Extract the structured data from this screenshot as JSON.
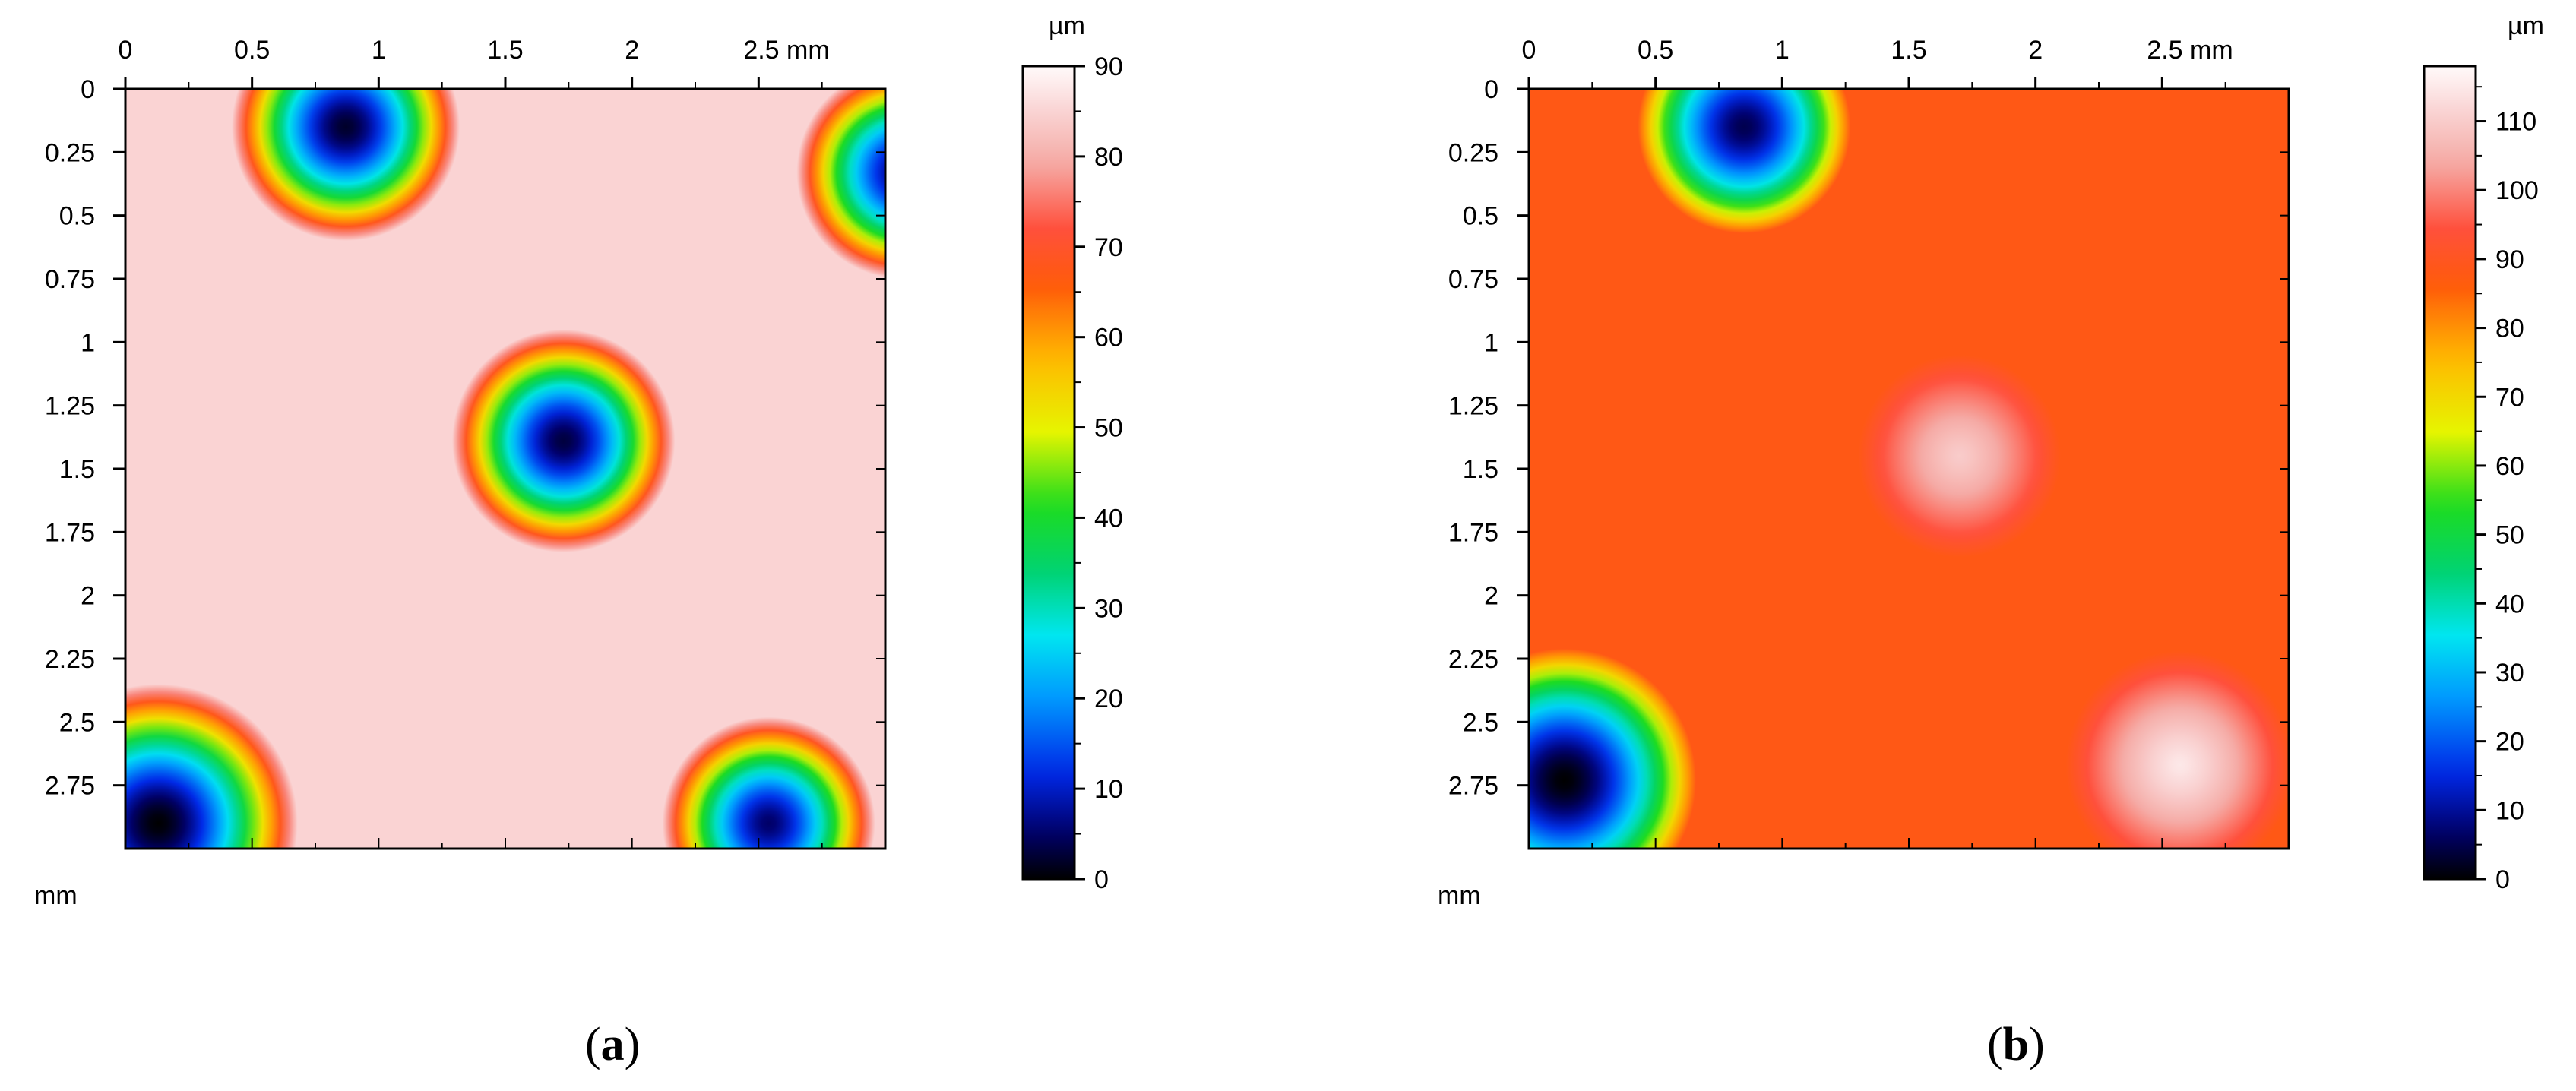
{
  "chart_data": [
    {
      "type": "heatmap",
      "panel_label": "a",
      "x_ticks": [
        "0",
        "0.5",
        "1",
        "1.5",
        "2",
        "2.5 mm"
      ],
      "x_tick_values": [
        0,
        0.5,
        1,
        1.5,
        2,
        2.5
      ],
      "y_ticks": [
        "0",
        "0.25",
        "0.5",
        "0.75",
        "1",
        "1.25",
        "1.5",
        "1.75",
        "2",
        "2.25",
        "2.5",
        "2.75"
      ],
      "y_tick_values": [
        0,
        0.25,
        0.5,
        0.75,
        1,
        1.25,
        1.5,
        1.75,
        2,
        2.25,
        2.5,
        2.75
      ],
      "x_range": [
        0,
        3
      ],
      "y_range": [
        0,
        3
      ],
      "axis_unit_label": "mm",
      "colorbar": {
        "unit": "µm",
        "ticks": [
          "0",
          "10",
          "20",
          "30",
          "40",
          "50",
          "60",
          "70",
          "80",
          "90"
        ],
        "tick_values": [
          0,
          10,
          20,
          30,
          40,
          50,
          60,
          70,
          80,
          90
        ],
        "range": [
          0,
          90
        ]
      },
      "background_value": 85,
      "features": [
        {
          "kind": "pit",
          "x": 0.87,
          "y": 0.15,
          "r": 0.45,
          "min": 2
        },
        {
          "kind": "pit",
          "x": 1.73,
          "y": 1.39,
          "r": 0.44,
          "min": 3
        },
        {
          "kind": "pit",
          "x": 0.13,
          "y": 2.9,
          "r": 0.55,
          "min": 0
        },
        {
          "kind": "pit",
          "x": 2.54,
          "y": 2.9,
          "r": 0.42,
          "min": 5
        },
        {
          "kind": "pit",
          "x": 3.07,
          "y": 0.33,
          "r": 0.42,
          "min": 5
        }
      ]
    },
    {
      "type": "heatmap",
      "panel_label": "b",
      "x_ticks": [
        "0",
        "0.5",
        "1",
        "1.5",
        "2",
        "2.5 mm"
      ],
      "x_tick_values": [
        0,
        0.5,
        1,
        1.5,
        2,
        2.5
      ],
      "y_ticks": [
        "0",
        "0.25",
        "0.5",
        "0.75",
        "1",
        "1.25",
        "1.5",
        "1.75",
        "2",
        "2.25",
        "2.5",
        "2.75"
      ],
      "y_tick_values": [
        0,
        0.25,
        0.5,
        0.75,
        1,
        1.25,
        1.5,
        1.75,
        2,
        2.25,
        2.5,
        2.75
      ],
      "x_range": [
        0,
        3
      ],
      "y_range": [
        0,
        3
      ],
      "axis_unit_label": "mm",
      "colorbar": {
        "unit": "µm",
        "ticks": [
          "0",
          "10",
          "20",
          "30",
          "40",
          "50",
          "60",
          "70",
          "80",
          "90",
          "100",
          "110"
        ],
        "tick_values": [
          0,
          10,
          20,
          30,
          40,
          50,
          60,
          70,
          80,
          90,
          100,
          110
        ],
        "range": [
          0,
          118
        ]
      },
      "background_value": 88,
      "features": [
        {
          "kind": "pit",
          "x": 0.85,
          "y": 0.15,
          "r": 0.42,
          "min": 5
        },
        {
          "kind": "pit",
          "x": 0.14,
          "y": 2.73,
          "r": 0.52,
          "min": 0
        },
        {
          "kind": "bump",
          "x": 1.7,
          "y": 1.45,
          "r": 0.4,
          "max": 110
        },
        {
          "kind": "bump",
          "x": 2.57,
          "y": 2.67,
          "r": 0.45,
          "max": 115
        }
      ]
    }
  ]
}
